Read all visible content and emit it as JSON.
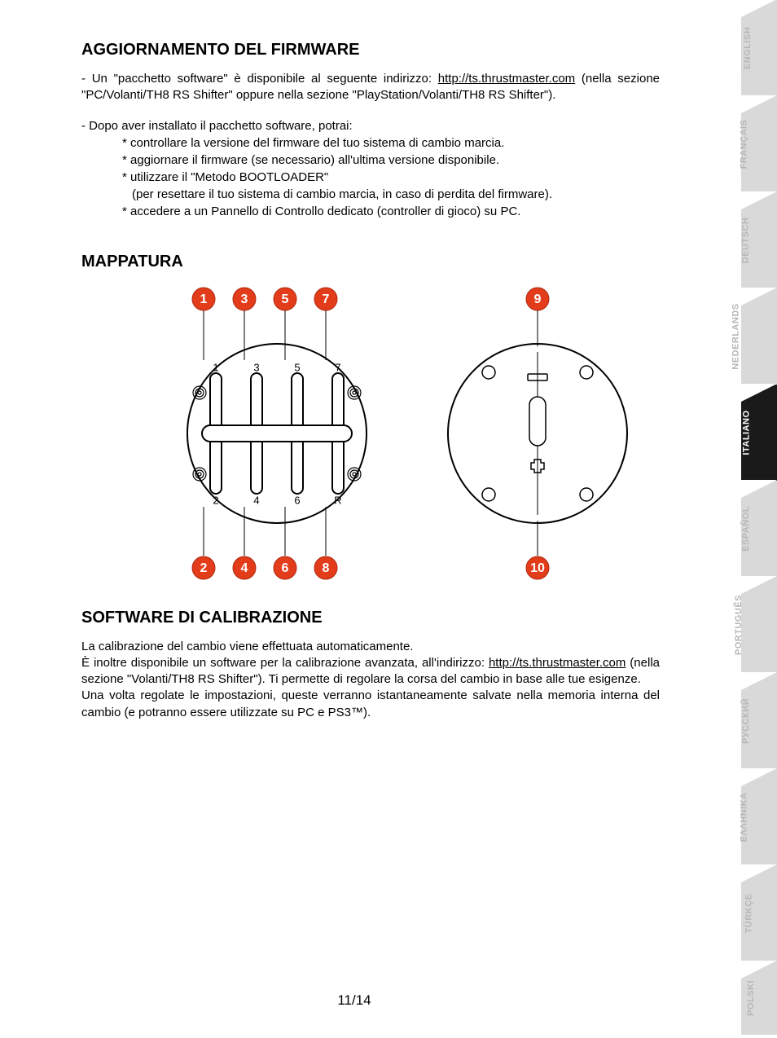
{
  "headings": {
    "firmware": "AGGIORNAMENTO DEL FIRMWARE",
    "mapping": "MAPPATURA",
    "calibration": "SOFTWARE DI CALIBRAZIONE"
  },
  "firmware": {
    "para1_a": "- Un \"pacchetto software\" è disponibile al seguente indirizzo: ",
    "link": "http://ts.thrustmaster.com",
    "para1_b": " (nella sezione \"PC/Volanti/TH8 RS Shifter\" oppure nella sezione \"PlayStation/Volanti/TH8 RS Shifter\").",
    "intro2": "- Dopo aver installato il pacchetto software, potrai:",
    "b1": "controllare la versione del firmware del tuo sistema di cambio marcia.",
    "b2": "aggiornare il firmware (se necessario) all'ultima versione disponibile.",
    "b3": "utilizzare il \"Metodo BOOTLOADER\"",
    "b3sub": "(per resettare il tuo sistema di cambio marcia, in caso di perdita del firmware).",
    "b4": "accedere a un Pannello di Controllo dedicato (controller di gioco) su PC."
  },
  "mapping": {
    "top_badges": [
      "1",
      "3",
      "5",
      "7",
      "9"
    ],
    "bottom_badges": [
      "2",
      "4",
      "6",
      "8",
      "10"
    ],
    "hpattern_top": [
      "1",
      "3",
      "5",
      "7"
    ],
    "hpattern_bottom": [
      "2",
      "4",
      "6",
      "R"
    ],
    "badge_color": "#e23c1a",
    "badge_text_color": "#ffffff",
    "stroke_color": "#000000",
    "diagram_stroke_width": 2
  },
  "calibration": {
    "p1": "La calibrazione del cambio viene effettuata automaticamente.",
    "p2a": "È inoltre disponibile un software per la calibrazione avanzata, all'indirizzo: ",
    "link": "http://ts.thrustmaster.com",
    "p2b": " (nella sezione \"Volanti/TH8 RS Shifter\"). Ti permette di regolare la corsa del cambio in base alle tue esigenze.",
    "p3": "Una volta regolate le impostazioni, queste verranno istantaneamente salvate nella memoria interna del cambio (e potranno essere utilizzate su PC e PS3™)."
  },
  "page_number": "11/14",
  "languages": [
    {
      "label": "ENGLISH",
      "active": false
    },
    {
      "label": "FRANÇAIS",
      "active": false
    },
    {
      "label": "DEUTSCH",
      "active": false
    },
    {
      "label": "NEDERLANDS",
      "active": false
    },
    {
      "label": "ITALIANO",
      "active": true
    },
    {
      "label": "ESPAÑOL",
      "active": false
    },
    {
      "label": "PORTUGUÊS",
      "active": false
    },
    {
      "label": "РУССКИЙ",
      "active": false
    },
    {
      "label": "ΕΛΛΗΝΙΚΑ",
      "active": false
    },
    {
      "label": "TÜRKÇE",
      "active": false
    },
    {
      "label": "POLSKI",
      "active": false
    }
  ]
}
